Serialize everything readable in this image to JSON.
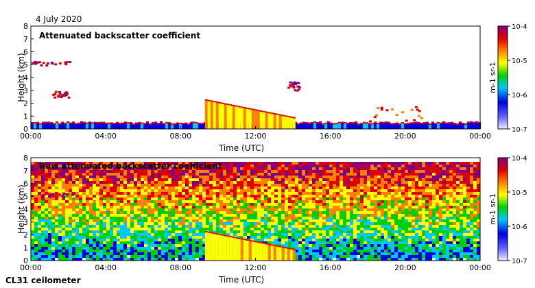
{
  "header": {
    "date": "4 July 2020"
  },
  "footer": {
    "instrument": "CL31 ceilometer"
  },
  "chart_data": [
    {
      "type": "heatmap",
      "title": "Attenuated backscatter coefficient",
      "xlabel": "Time (UTC)",
      "ylabel": "Height (km)",
      "xlim": [
        "00:00",
        "24:00"
      ],
      "ylim": [
        0,
        8
      ],
      "x_ticks": [
        "00:00",
        "04:00",
        "08:00",
        "12:00",
        "16:00",
        "20:00",
        "00:00"
      ],
      "y_ticks": [
        "0",
        "1",
        "2",
        "3",
        "4",
        "5",
        "6",
        "7",
        "8"
      ],
      "colorbar": {
        "scale": "log",
        "range": [
          1e-07,
          0.0001
        ],
        "ticks": [
          "10-7",
          "10-6",
          "10-5",
          "10-4"
        ],
        "unit": "m-1 sr-1",
        "colors": [
          "#f0f0ff",
          "#0000e0",
          "#00c8ff",
          "#00d000",
          "#ffff00",
          "#ff8000",
          "#e00000",
          "#800080"
        ]
      },
      "features": [
        {
          "name": "boundary layer",
          "x_range_h": [
            0,
            24
          ],
          "height_km": [
            0,
            0.6
          ],
          "level": 0.2
        },
        {
          "name": "convective boundary layer",
          "x_range_h": [
            9.3,
            14
          ],
          "height_km": [
            0,
            2.3
          ],
          "level": 0.6
        },
        {
          "name": "elevated layer",
          "x_range_h": [
            0,
            2.2
          ],
          "height_km": [
            5,
            5.3
          ],
          "level": 0.9
        },
        {
          "name": "cloud",
          "x_range_h": [
            1.0,
            2.0
          ],
          "height_km": [
            2.5,
            3.0
          ],
          "level": 0.85
        },
        {
          "name": "cloud",
          "x_range_h": [
            13.7,
            14.3
          ],
          "height_km": [
            3.0,
            3.7
          ],
          "level": 0.9
        },
        {
          "name": "cloud",
          "x_range_h": [
            18.0,
            21.0
          ],
          "height_km": [
            0.5,
            2.0
          ],
          "level": 0.75
        }
      ]
    },
    {
      "type": "heatmap",
      "title": "Raw attenuated backscatter coefficient",
      "xlabel": "Time (UTC)",
      "ylabel": "Height (km)",
      "xlim": [
        "00:00",
        "24:00"
      ],
      "ylim": [
        0,
        8
      ],
      "x_ticks": [
        "00:00",
        "04:00",
        "08:00",
        "12:00",
        "16:00",
        "20:00",
        "00:00"
      ],
      "y_ticks": [
        "0",
        "1",
        "2",
        "3",
        "4",
        "5",
        "6",
        "7",
        "8"
      ],
      "colorbar": {
        "scale": "log",
        "range": [
          1e-07,
          0.0001
        ],
        "ticks": [
          "10-7",
          "10-6",
          "10-5",
          "10-4"
        ],
        "unit": "m-1 sr-1",
        "colors": [
          "#f0f0ff",
          "#0000e0",
          "#00c8ff",
          "#00d000",
          "#ffff00",
          "#ff8000",
          "#e00000",
          "#800080"
        ]
      },
      "features": [
        {
          "name": "noise background",
          "x_range_h": [
            0,
            24
          ],
          "height_km": [
            0,
            7.6
          ],
          "level": 0.5
        },
        {
          "name": "convective boundary layer",
          "x_range_h": [
            9.3,
            14
          ],
          "height_km": [
            0,
            2.3
          ],
          "level": 0.6
        },
        {
          "name": "elevated layer",
          "x_range_h": [
            0,
            2.2
          ],
          "height_km": [
            5,
            5.3
          ],
          "level": 0.9
        }
      ]
    }
  ]
}
